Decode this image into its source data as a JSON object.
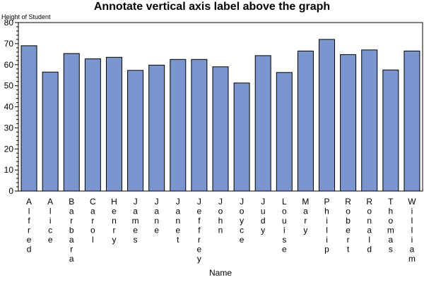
{
  "chart_data": {
    "type": "bar",
    "title": "Annotate vertical axis label above the graph",
    "ylabel": "Height of Student",
    "xlabel": "Name",
    "ylim": [
      0,
      80
    ],
    "yticks": [
      0,
      10,
      20,
      30,
      40,
      50,
      60,
      70,
      80
    ],
    "grid": false,
    "bar_color": "#7b95cf",
    "categories": [
      "Alfred",
      "Alice",
      "Barbara",
      "Carol",
      "Henry",
      "James",
      "Jane",
      "Janet",
      "Jeffrey",
      "John",
      "Joyce",
      "Judy",
      "Louise",
      "Mary",
      "Philip",
      "Robert",
      "Ronald",
      "Thomas",
      "William"
    ],
    "values": [
      69.0,
      56.5,
      65.3,
      62.8,
      63.5,
      57.3,
      59.8,
      62.5,
      62.5,
      59.0,
      51.3,
      64.3,
      56.3,
      66.5,
      72.0,
      64.8,
      67.0,
      57.5,
      66.5
    ]
  }
}
